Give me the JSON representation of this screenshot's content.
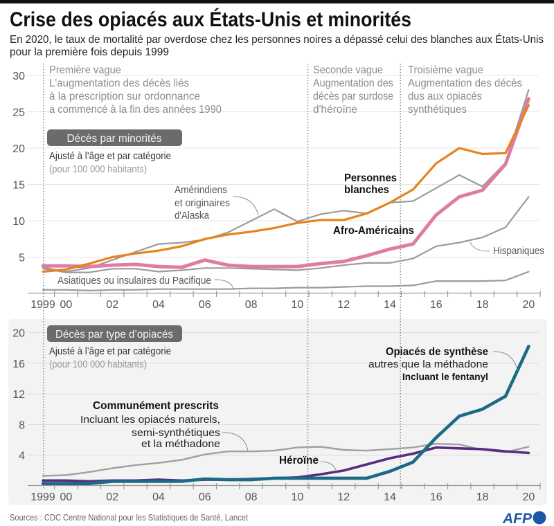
{
  "header": {
    "title": "Crise des opiacés aux États-Unis et minorités",
    "subtitle": [
      "En 2020, le taux de mortalité par overdose chez les personnes noires a dépassé celui des blanches aux États-Unis",
      "pour la première fois depuis 1999"
    ]
  },
  "waves": [
    {
      "lines": [
        "Première vague",
        "L'augmentation des décès liés",
        "à la prescription sur ordonnance",
        "a commencé à la fin des années 1990"
      ]
    },
    {
      "lines": [
        "Seconde vague",
        "Augmentation des",
        "décès par surdose",
        "d'héroïne"
      ]
    },
    {
      "lines": [
        "Troisième vague",
        "Augmentation des décès",
        "dus aux opiacés",
        "synthétiques"
      ]
    }
  ],
  "chart_data": [
    {
      "type": "line",
      "title": "Décès par minorités",
      "subtitle": "Ajusté à l’âge et par catégorie",
      "unit_note": "(pour 100 000 habitants)",
      "xlabel": "",
      "ylabel": "",
      "x": [
        1999,
        2000,
        2001,
        2002,
        2003,
        2004,
        2005,
        2006,
        2007,
        2008,
        2009,
        2010,
        2011,
        2012,
        2013,
        2014,
        2015,
        2016,
        2017,
        2018,
        2019,
        2020
      ],
      "x_tick_labels": [
        {
          "year": 1999,
          "label": "1999"
        },
        {
          "year": 2000,
          "label": "00"
        },
        {
          "year": 2002,
          "label": "02"
        },
        {
          "year": 2004,
          "label": "04"
        },
        {
          "year": 2006,
          "label": "06"
        },
        {
          "year": 2008,
          "label": "08"
        },
        {
          "year": 2010,
          "label": "10"
        },
        {
          "year": 2012,
          "label": "12"
        },
        {
          "year": 2014,
          "label": "14"
        },
        {
          "year": 2016,
          "label": "16"
        },
        {
          "year": 2018,
          "label": "18"
        },
        {
          "year": 2020,
          "label": "20"
        }
      ],
      "ylim": [
        0,
        30
      ],
      "y_ticks": [
        5,
        10,
        15,
        20,
        25,
        30
      ],
      "grid": true,
      "wave_boundaries": [
        1999,
        2010.5,
        2014.5
      ],
      "series": [
        {
          "id": "asian",
          "name": "Asiatiques ou insulaires du Pacifique",
          "color": "#9b9b9b",
          "label": [
            "Asiatiques ou insulaires du Pacifique"
          ],
          "values": [
            0.5,
            0.5,
            0.4,
            0.5,
            0.5,
            0.6,
            0.6,
            0.6,
            0.6,
            0.7,
            0.7,
            0.8,
            0.8,
            0.9,
            1.0,
            1.0,
            1.1,
            1.7,
            1.7,
            1.7,
            1.8,
            3.0
          ]
        },
        {
          "id": "hispanic",
          "name": "Hispaniques",
          "color": "#9b9b9b",
          "label": [
            "Hispaniques"
          ],
          "values": [
            3.4,
            2.9,
            2.9,
            3.4,
            3.4,
            3.0,
            3.2,
            3.5,
            3.5,
            3.4,
            3.3,
            3.2,
            3.5,
            3.9,
            4.2,
            4.2,
            4.8,
            6.5,
            7.0,
            7.7,
            9.1,
            13.3
          ]
        },
        {
          "id": "amerindian",
          "name": "Amérindiens et originaires d'Alaska",
          "color": "#9b9b9b",
          "label": [
            "Amérindiens",
            "et originaires",
            "d'Alaska"
          ],
          "values": [
            3.6,
            3.0,
            3.5,
            4.6,
            5.7,
            6.8,
            7.0,
            7.4,
            8.4,
            10.0,
            11.6,
            9.9,
            10.9,
            11.4,
            11.0,
            12.5,
            12.7,
            14.5,
            16.3,
            14.7,
            18.0,
            28.0
          ]
        },
        {
          "id": "black",
          "name": "Afro-Américains",
          "color": "#e07ca3",
          "label": [
            "Afro-Américains"
          ],
          "values": [
            3.8,
            3.8,
            3.7,
            3.9,
            4.0,
            3.7,
            3.6,
            4.6,
            3.9,
            3.7,
            3.7,
            3.7,
            4.1,
            4.4,
            5.2,
            6.1,
            6.8,
            10.8,
            13.3,
            14.2,
            17.8,
            26.8
          ]
        },
        {
          "id": "white",
          "name": "Personnes blanches",
          "color": "#e8821c",
          "label": [
            "Personnes",
            "blanches"
          ],
          "values": [
            3.0,
            3.3,
            4.1,
            5.0,
            5.5,
            5.9,
            6.5,
            7.5,
            8.1,
            8.5,
            9.0,
            9.7,
            10.1,
            10.1,
            11.0,
            12.5,
            14.3,
            17.9,
            20.0,
            19.2,
            19.3,
            25.9
          ]
        }
      ]
    },
    {
      "type": "line",
      "title": "Décès par type d’opiacés",
      "subtitle": "Ajusté à l’âge et par catégorie",
      "unit_note": "(pour 100 000 habitants)",
      "xlabel": "",
      "ylabel": "",
      "x": [
        1999,
        2000,
        2001,
        2002,
        2003,
        2004,
        2005,
        2006,
        2007,
        2008,
        2009,
        2010,
        2011,
        2012,
        2013,
        2014,
        2015,
        2016,
        2017,
        2018,
        2019,
        2020
      ],
      "x_tick_labels": [
        {
          "year": 1999,
          "label": "1999"
        },
        {
          "year": 2000,
          "label": "00"
        },
        {
          "year": 2002,
          "label": "02"
        },
        {
          "year": 2004,
          "label": "04"
        },
        {
          "year": 2006,
          "label": "06"
        },
        {
          "year": 2008,
          "label": "08"
        },
        {
          "year": 2010,
          "label": "10"
        },
        {
          "year": 2012,
          "label": "12"
        },
        {
          "year": 2014,
          "label": "14"
        },
        {
          "year": 2016,
          "label": "16"
        },
        {
          "year": 2018,
          "label": "18"
        },
        {
          "year": 2020,
          "label": "20"
        }
      ],
      "ylim": [
        0,
        20
      ],
      "y_ticks": [
        4,
        8,
        12,
        16,
        20
      ],
      "grid": true,
      "series": [
        {
          "id": "common",
          "name": "Communément prescrits",
          "color": "#a0a0a0",
          "label": [
            "Communément prescrits",
            "Incluant les opiacés naturels,",
            "semi-synthétiques",
            "et la méthadone"
          ],
          "values": [
            1.3,
            1.4,
            1.8,
            2.3,
            2.7,
            3.0,
            3.4,
            4.1,
            4.5,
            4.5,
            4.6,
            5.0,
            5.1,
            4.7,
            4.6,
            4.8,
            5.0,
            5.5,
            5.4,
            4.7,
            4.4,
            5.1
          ]
        },
        {
          "id": "heroin",
          "name": "Héroïne",
          "color": "#5b2b83",
          "label": [
            "Héroïne"
          ],
          "values": [
            0.7,
            0.7,
            0.6,
            0.7,
            0.7,
            0.8,
            0.7,
            0.8,
            0.8,
            0.9,
            1.0,
            1.1,
            1.5,
            2.0,
            2.8,
            3.6,
            4.2,
            5.0,
            4.9,
            4.8,
            4.5,
            4.3
          ]
        },
        {
          "id": "synthetic",
          "name": "Opiacés de synthèse autres que la méthadone",
          "color": "#1c6a86",
          "label": [
            "Opiacés de synthèse",
            "autres que la méthadone",
            "Incluant le fentanyl"
          ],
          "values": [
            0.3,
            0.3,
            0.3,
            0.6,
            0.6,
            0.6,
            0.6,
            0.9,
            0.8,
            0.8,
            1.0,
            1.0,
            1.0,
            1.0,
            1.0,
            1.9,
            3.1,
            6.3,
            9.1,
            10.0,
            11.7,
            18.2
          ]
        }
      ]
    }
  ],
  "footer": {
    "sources": "Sources : CDC Centre National pour les Statistiques de Santé, Lancet",
    "logo": "AFP",
    "logo_color": "#1d57a8"
  }
}
